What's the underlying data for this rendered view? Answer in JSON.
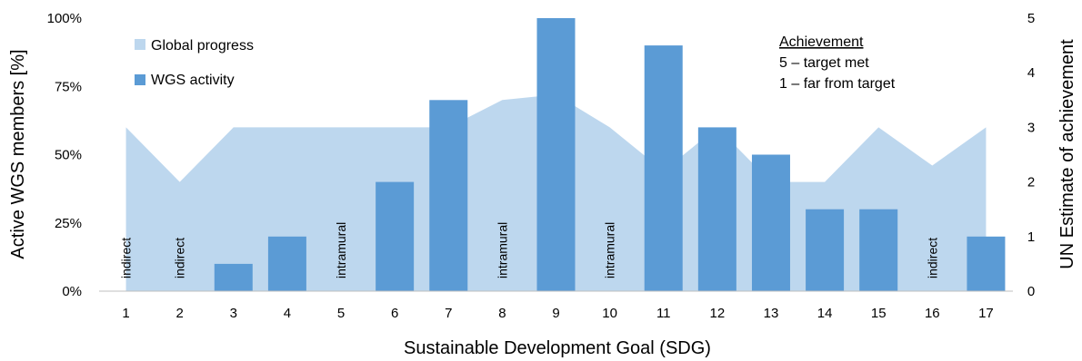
{
  "chart_data": {
    "type": "bar",
    "categories": [
      "1",
      "2",
      "3",
      "4",
      "5",
      "6",
      "7",
      "8",
      "9",
      "10",
      "11",
      "12",
      "13",
      "14",
      "15",
      "16",
      "17"
    ],
    "series": [
      {
        "name": "WGS activity",
        "axis": "left",
        "chart_type": "bar",
        "values": [
          0,
          0,
          10,
          20,
          0,
          40,
          70,
          0,
          100,
          0,
          90,
          60,
          50,
          30,
          30,
          0,
          20
        ],
        "color": "#5b9bd5"
      },
      {
        "name": "Global progress",
        "axis": "right",
        "chart_type": "area",
        "values": [
          3,
          2,
          3,
          3,
          3,
          3,
          3,
          3.5,
          3.6,
          3,
          2.2,
          3,
          2,
          2,
          3,
          2.3,
          3
        ],
        "color": "#bdd7ee"
      }
    ],
    "bar_labels": [
      {
        "category": "1",
        "text": "indirect"
      },
      {
        "category": "2",
        "text": "indirect"
      },
      {
        "category": "5",
        "text": "intramural"
      },
      {
        "category": "8",
        "text": "intramural"
      },
      {
        "category": "10",
        "text": "intramural"
      },
      {
        "category": "16",
        "text": "indirect"
      }
    ],
    "xlabel": "Sustainable Development Goal (SDG)",
    "ylabel": "Active WGS  members  [%]",
    "y2label": "UN Estimate of achievement",
    "ylim": [
      0,
      100
    ],
    "y2lim": [
      0,
      5
    ],
    "yticks": [
      "0%",
      "25%",
      "50%",
      "75%",
      "100%"
    ],
    "y2ticks": [
      "0",
      "1",
      "2",
      "3",
      "4",
      "5"
    ],
    "legend_position": "top-left",
    "annotation": {
      "title": "Achievement",
      "lines": [
        "5 – target met",
        "1 – far from target"
      ]
    }
  }
}
